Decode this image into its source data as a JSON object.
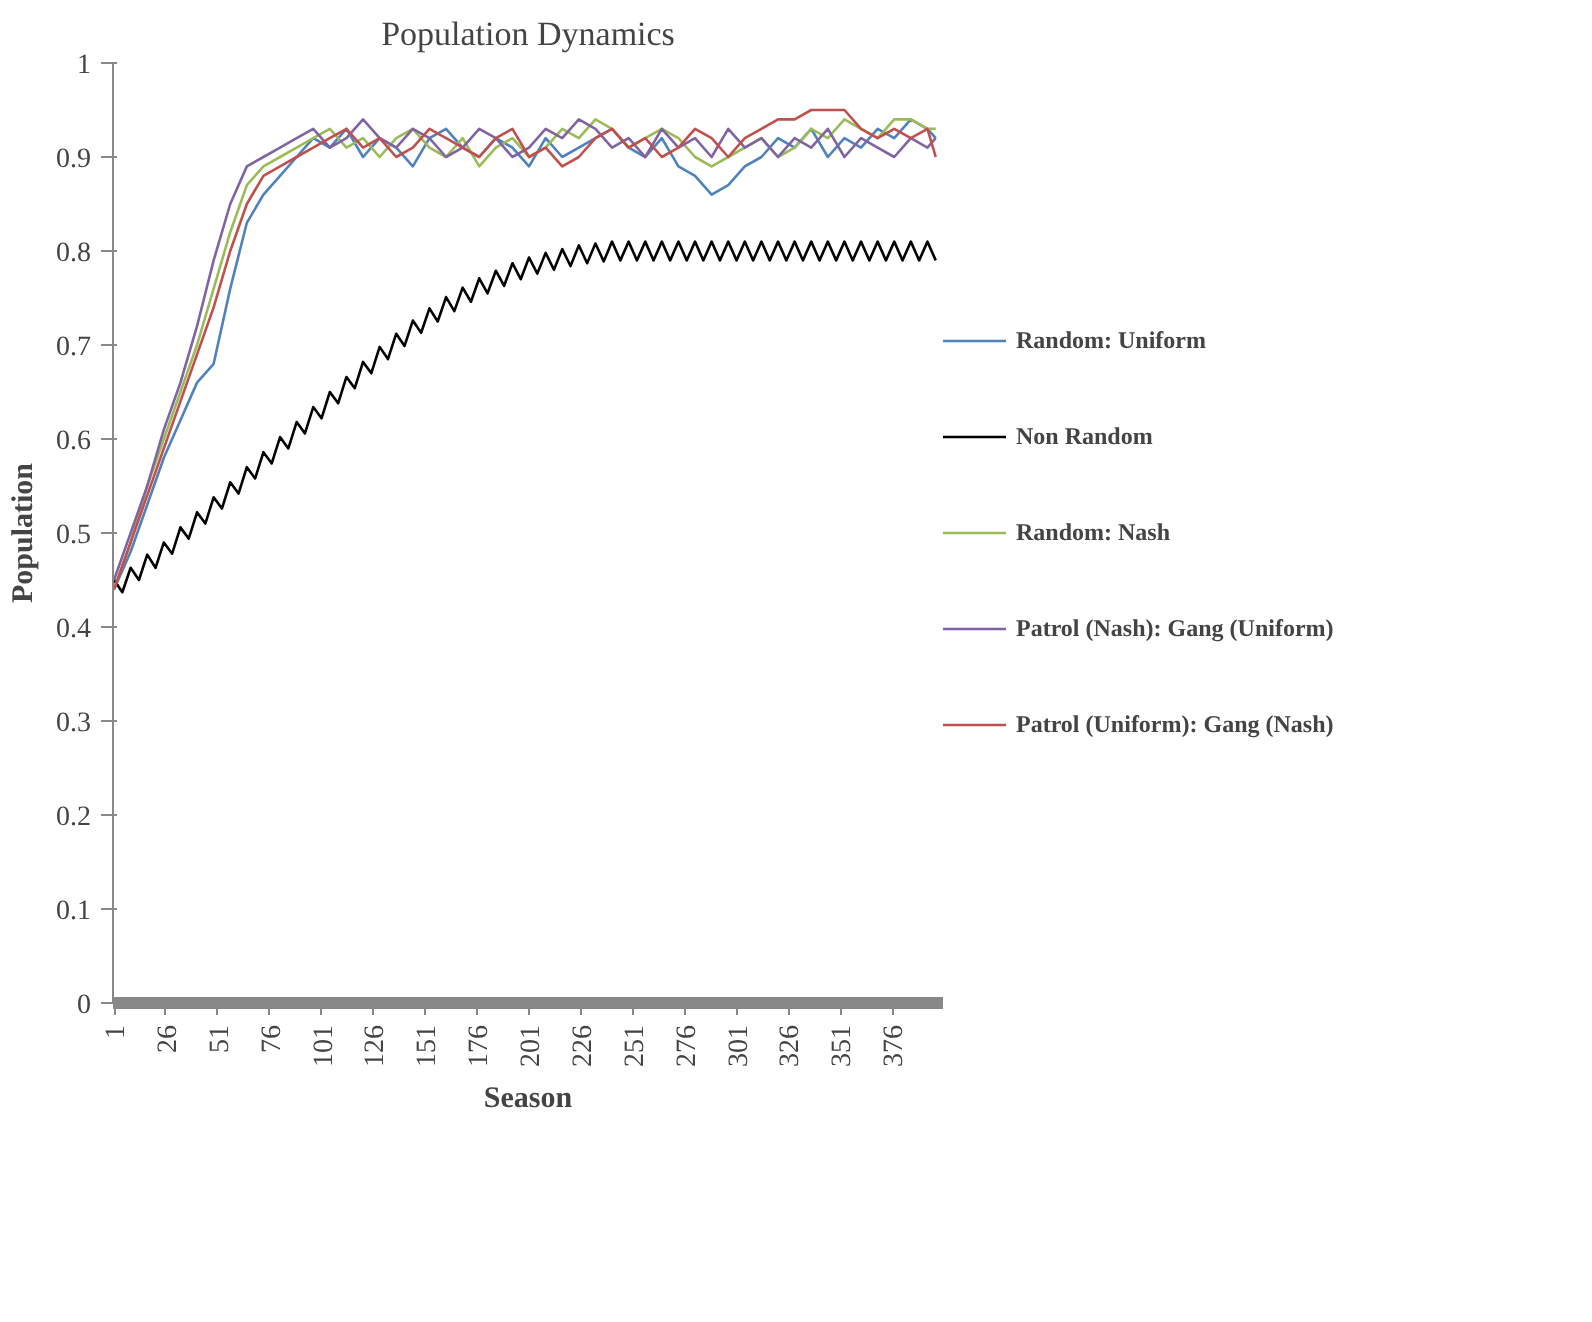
{
  "chart_data": {
    "type": "line",
    "title": "Population Dynamics",
    "xlabel": "Season",
    "ylabel": "Population",
    "xlim": [
      0.5,
      400.5
    ],
    "xticks": [
      1,
      26,
      51,
      76,
      101,
      126,
      151,
      176,
      201,
      226,
      251,
      276,
      301,
      326,
      351,
      376
    ],
    "ylim": [
      0,
      1
    ],
    "yticks": [
      0,
      {
        "value": 0.1,
        "label": "0.1"
      },
      {
        "value": 0.2,
        "label": "0.2"
      },
      {
        "value": 0.3,
        "label": "0.3"
      },
      {
        "value": 0.4,
        "label": "0.4"
      },
      {
        "value": 0.5,
        "label": "0.5"
      },
      {
        "value": 0.6,
        "label": "0.6"
      },
      {
        "value": 0.7,
        "label": "0.7"
      },
      {
        "value": 0.8,
        "label": "0.8"
      },
      {
        "value": 0.9,
        "label": "0.9"
      },
      1
    ],
    "grid": false,
    "legend": "right",
    "marker": "none",
    "line_style": "solid",
    "x": [
      1,
      9,
      17,
      25,
      33,
      41,
      49,
      57,
      65,
      73,
      81,
      89,
      97,
      105,
      113,
      121,
      129,
      137,
      145,
      153,
      161,
      169,
      177,
      185,
      193,
      201,
      209,
      217,
      225,
      233,
      241,
      249,
      257,
      265,
      273,
      281,
      289,
      297,
      305,
      313,
      321,
      329,
      337,
      345,
      353,
      361,
      369,
      377,
      385,
      393,
      397
    ],
    "series": [
      {
        "name": "Random: Uniform",
        "color": "#4f81bd",
        "values": [
          0.44,
          0.48,
          0.53,
          0.58,
          0.62,
          0.66,
          0.68,
          0.76,
          0.83,
          0.86,
          0.88,
          0.9,
          0.92,
          0.91,
          0.93,
          0.9,
          0.92,
          0.91,
          0.89,
          0.92,
          0.93,
          0.91,
          0.9,
          0.92,
          0.91,
          0.89,
          0.92,
          0.9,
          0.91,
          0.92,
          0.93,
          0.91,
          0.9,
          0.92,
          0.89,
          0.88,
          0.86,
          0.87,
          0.89,
          0.9,
          0.92,
          0.91,
          0.93,
          0.9,
          0.92,
          0.91,
          0.93,
          0.92,
          0.94,
          0.93,
          0.92
        ]
      },
      {
        "name": "Non Random",
        "color": "#000000",
        "x": [
          1,
          5,
          9,
          13,
          17,
          21,
          25,
          29,
          33,
          37,
          41,
          45,
          49,
          53,
          57,
          61,
          65,
          69,
          73,
          77,
          81,
          85,
          89,
          93,
          97,
          101,
          105,
          109,
          113,
          117,
          121,
          125,
          129,
          133,
          137,
          141,
          145,
          149,
          153,
          157,
          161,
          165,
          169,
          173,
          177,
          181,
          185,
          189,
          193,
          197,
          201,
          205,
          209,
          213,
          217,
          221,
          225,
          229,
          233,
          237,
          241,
          245,
          249,
          253,
          257,
          261,
          265,
          269,
          273,
          277,
          281,
          285,
          289,
          293,
          297,
          301,
          305,
          309,
          313,
          317,
          321,
          325,
          329,
          333,
          337,
          341,
          345,
          349,
          353,
          357,
          361,
          365,
          369,
          373,
          377,
          381,
          385,
          389,
          393,
          397
        ],
        "values": [
          0.45,
          0.437,
          0.463,
          0.45,
          0.477,
          0.463,
          0.49,
          0.478,
          0.506,
          0.494,
          0.522,
          0.51,
          0.538,
          0.526,
          0.554,
          0.542,
          0.57,
          0.558,
          0.586,
          0.574,
          0.602,
          0.59,
          0.618,
          0.606,
          0.634,
          0.622,
          0.65,
          0.638,
          0.666,
          0.654,
          0.682,
          0.67,
          0.698,
          0.685,
          0.712,
          0.699,
          0.726,
          0.713,
          0.739,
          0.725,
          0.751,
          0.736,
          0.761,
          0.746,
          0.771,
          0.755,
          0.779,
          0.763,
          0.787,
          0.77,
          0.793,
          0.776,
          0.798,
          0.78,
          0.802,
          0.784,
          0.806,
          0.787,
          0.808,
          0.789,
          0.81,
          0.79,
          0.81,
          0.79,
          0.81,
          0.79,
          0.81,
          0.79,
          0.81,
          0.79,
          0.81,
          0.79,
          0.81,
          0.79,
          0.81,
          0.79,
          0.81,
          0.79,
          0.81,
          0.79,
          0.81,
          0.79,
          0.81,
          0.79,
          0.81,
          0.79,
          0.81,
          0.79,
          0.81,
          0.79,
          0.81,
          0.79,
          0.81,
          0.79,
          0.81,
          0.79,
          0.81,
          0.79,
          0.81,
          0.79
        ]
      },
      {
        "name": "Random: Nash",
        "color": "#9bbb59",
        "values": [
          0.44,
          0.49,
          0.55,
          0.6,
          0.65,
          0.7,
          0.76,
          0.82,
          0.87,
          0.89,
          0.9,
          0.91,
          0.92,
          0.93,
          0.91,
          0.92,
          0.9,
          0.92,
          0.93,
          0.91,
          0.9,
          0.92,
          0.89,
          0.91,
          0.92,
          0.9,
          0.91,
          0.93,
          0.92,
          0.94,
          0.93,
          0.91,
          0.92,
          0.93,
          0.92,
          0.9,
          0.89,
          0.9,
          0.91,
          0.92,
          0.9,
          0.91,
          0.93,
          0.92,
          0.94,
          0.93,
          0.92,
          0.94,
          0.94,
          0.93,
          0.93
        ]
      },
      {
        "name": "Patrol (Nash): Gang (Uniform)",
        "color": "#8064a2",
        "values": [
          0.45,
          0.5,
          0.55,
          0.61,
          0.66,
          0.72,
          0.79,
          0.85,
          0.89,
          0.9,
          0.91,
          0.92,
          0.93,
          0.91,
          0.92,
          0.94,
          0.92,
          0.91,
          0.93,
          0.92,
          0.9,
          0.91,
          0.93,
          0.92,
          0.9,
          0.91,
          0.93,
          0.92,
          0.94,
          0.93,
          0.91,
          0.92,
          0.9,
          0.93,
          0.91,
          0.92,
          0.9,
          0.93,
          0.91,
          0.92,
          0.9,
          0.92,
          0.91,
          0.93,
          0.9,
          0.92,
          0.91,
          0.9,
          0.92,
          0.91,
          0.92
        ]
      },
      {
        "name": "Patrol (Uniform): Gang (Nash)",
        "color": "#c0504d",
        "values": [
          0.44,
          0.49,
          0.54,
          0.59,
          0.64,
          0.69,
          0.74,
          0.8,
          0.85,
          0.88,
          0.89,
          0.9,
          0.91,
          0.92,
          0.93,
          0.91,
          0.92,
          0.9,
          0.91,
          0.93,
          0.92,
          0.91,
          0.9,
          0.92,
          0.93,
          0.9,
          0.91,
          0.89,
          0.9,
          0.92,
          0.93,
          0.91,
          0.92,
          0.9,
          0.91,
          0.93,
          0.92,
          0.9,
          0.92,
          0.93,
          0.94,
          0.94,
          0.95,
          0.95,
          0.95,
          0.93,
          0.92,
          0.93,
          0.92,
          0.93,
          0.9
        ]
      }
    ]
  }
}
